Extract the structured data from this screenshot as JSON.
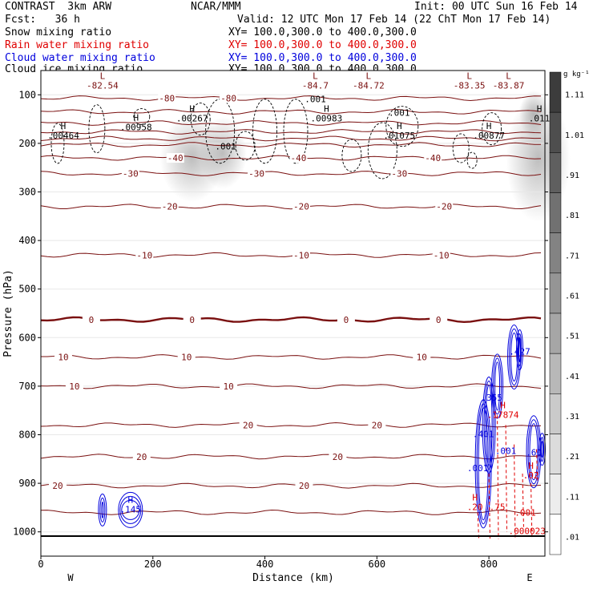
{
  "header": {
    "model": "CONTRAST  3km ARW",
    "org": "NCAR/MMM",
    "init": "Init: 00 UTC Sun 16 Feb 14",
    "fcst": "Fcst:   36 h",
    "valid": "Valid: 12 UTC Mon 17 Feb 14 (22 ChT Mon 17 Feb 14)",
    "fields": [
      {
        "name": "Snow mixing ratio",
        "xy": "XY= 100.0,300.0 to 400.0,300.0",
        "color": "#000000"
      },
      {
        "name": "Rain water mixing ratio",
        "xy": "XY= 100.0,300.0 to 400.0,300.0",
        "color": "#e00000"
      },
      {
        "name": "Cloud water mixing ratio",
        "xy": "XY= 100.0,300.0 to 400.0,300.0",
        "color": "#0000dd"
      },
      {
        "name": "Cloud ice mixing ratio",
        "xy": "XY= 100.0,300.0 to 400.0,300.0",
        "color": "#000000"
      }
    ]
  },
  "chart_data": {
    "type": "contour-cross-section",
    "xlabel": "Distance (km)",
    "ylabel": "Pressure (hPa)",
    "xlim": [
      0,
      900
    ],
    "ylim": [
      1050,
      50
    ],
    "x_ticks": [
      0,
      200,
      400,
      600,
      800
    ],
    "x_tick_labels": [
      "0",
      "200",
      "400",
      "600",
      "800"
    ],
    "y_ticks": [
      100,
      200,
      300,
      400,
      500,
      600,
      700,
      800,
      900,
      1000
    ],
    "y_tick_labels": [
      "100",
      "200",
      "300",
      "400",
      "500",
      "600",
      "700",
      "800",
      "900",
      "1000"
    ],
    "x_end_labels": {
      "left": "W",
      "right": "E"
    },
    "colorbar": {
      "unit": "g kg⁻¹",
      "labels": [
        "1.11",
        "1.01",
        ".91",
        ".81",
        ".71",
        ".61",
        ".51",
        ".41",
        ".31",
        ".21",
        ".11",
        ".01"
      ]
    },
    "temperature_contours": [
      {
        "value": -80,
        "p": 107,
        "labels": [
          {
            "x": 225,
            "text": "-80"
          },
          {
            "x": 335,
            "text": "-80"
          }
        ]
      },
      {
        "value": -70,
        "p": 135,
        "labels": []
      },
      {
        "value": -60,
        "p": 158,
        "labels": []
      },
      {
        "value": -50,
        "p": 176,
        "labels": []
      },
      {
        "value": -45,
        "p": 190,
        "labels": []
      },
      {
        "value": -40,
        "p": 203,
        "labels": []
      },
      {
        "value": -40,
        "p": 230,
        "labels": [
          {
            "x": 240,
            "text": "-40"
          },
          {
            "x": 460,
            "text": "-40"
          },
          {
            "x": 700,
            "text": "-40"
          }
        ]
      },
      {
        "value": -30,
        "p": 262,
        "labels": [
          {
            "x": 160,
            "text": "-30"
          },
          {
            "x": 385,
            "text": "-30"
          },
          {
            "x": 640,
            "text": "-30"
          }
        ]
      },
      {
        "value": -20,
        "p": 330,
        "labels": [
          {
            "x": 230,
            "text": "-20"
          },
          {
            "x": 465,
            "text": "-20"
          },
          {
            "x": 720,
            "text": "-20"
          }
        ]
      },
      {
        "value": -10,
        "p": 430,
        "labels": [
          {
            "x": 185,
            "text": "-10"
          },
          {
            "x": 465,
            "text": "-10"
          },
          {
            "x": 715,
            "text": "-10"
          }
        ]
      },
      {
        "value": 0,
        "p": 563,
        "thick": true,
        "labels": [
          {
            "x": 90,
            "text": "0"
          },
          {
            "x": 270,
            "text": "0"
          },
          {
            "x": 545,
            "text": "0"
          },
          {
            "x": 710,
            "text": "0"
          }
        ]
      },
      {
        "value": 10,
        "p": 640,
        "labels": [
          {
            "x": 40,
            "text": "10"
          },
          {
            "x": 260,
            "text": "10"
          },
          {
            "x": 680,
            "text": "10"
          }
        ]
      },
      {
        "value": 10,
        "p": 700,
        "labels": [
          {
            "x": 60,
            "text": "10"
          },
          {
            "x": 335,
            "text": "10"
          }
        ]
      },
      {
        "value": 20,
        "p": 780,
        "labels": [
          {
            "x": 370,
            "text": "20"
          },
          {
            "x": 600,
            "text": "20"
          }
        ]
      },
      {
        "value": 20,
        "p": 845,
        "labels": [
          {
            "x": 180,
            "text": "20"
          },
          {
            "x": 530,
            "text": "20"
          }
        ]
      },
      {
        "value": 20,
        "p": 905,
        "labels": [
          {
            "x": 30,
            "text": "20"
          },
          {
            "x": 470,
            "text": "20"
          }
        ]
      },
      {
        "value": 20,
        "p": 960,
        "labels": []
      }
    ],
    "extrema_labels": [
      {
        "kind": "L",
        "x": 110,
        "p": 82,
        "value": "-82.54"
      },
      {
        "kind": "L",
        "x": 490,
        "p": 82,
        "value": "-84.7"
      },
      {
        "kind": "L",
        "x": 585,
        "p": 82,
        "value": "-84.72"
      },
      {
        "kind": "L",
        "x": 765,
        "p": 82,
        "value": "-83.35"
      },
      {
        "kind": "L",
        "x": 835,
        "p": 82,
        "value": "-83.87"
      },
      {
        "kind": "H",
        "x": 40,
        "p": 185,
        "value": ".00464"
      },
      {
        "kind": "H",
        "x": 170,
        "p": 168,
        "value": ".00958"
      },
      {
        "kind": "H",
        "x": 270,
        "p": 150,
        "value": ".00267"
      },
      {
        "kind": "H",
        "x": 510,
        "p": 150,
        "value": ".00983"
      },
      {
        "kind": "H",
        "x": 640,
        "p": 185,
        "value": ".01075"
      },
      {
        "kind": "H",
        "x": 800,
        "p": 185,
        "value": ".00877"
      },
      {
        "kind": "H",
        "x": 890,
        "p": 150,
        "value": ".011"
      }
    ],
    "snow_labels": [
      {
        "x": 490,
        "p": 110,
        "value": ".001"
      },
      {
        "x": 640,
        "p": 138,
        "value": ".001"
      },
      {
        "x": 330,
        "p": 208,
        "value": ".001"
      }
    ],
    "cloud_water_labels": [
      {
        "kind": "H",
        "x": 160,
        "p": 955,
        "value": ".145"
      },
      {
        "x": 855,
        "p": 630,
        "value": ".427"
      },
      {
        "x": 805,
        "p": 725,
        "value": ".355"
      },
      {
        "x": 790,
        "p": 800,
        "value": ".401"
      },
      {
        "x": 830,
        "p": 835,
        "value": ".001"
      },
      {
        "x": 880,
        "p": 838,
        "value": ".60"
      },
      {
        "x": 780,
        "p": 870,
        "value": ".001"
      }
    ],
    "rain_labels": [
      {
        "kind": "H",
        "x": 825,
        "p": 760,
        "value": ".17874"
      },
      {
        "kind": "H",
        "x": 775,
        "p": 950,
        "value": ".20"
      },
      {
        "x": 815,
        "p": 950,
        "value": ".75"
      },
      {
        "kind": "H",
        "x": 875,
        "p": 885,
        "value": ".02"
      },
      {
        "x": 865,
        "p": 962,
        "value": ".001"
      },
      {
        "x": 868,
        "p": 1000,
        "value": ".000023"
      }
    ]
  }
}
